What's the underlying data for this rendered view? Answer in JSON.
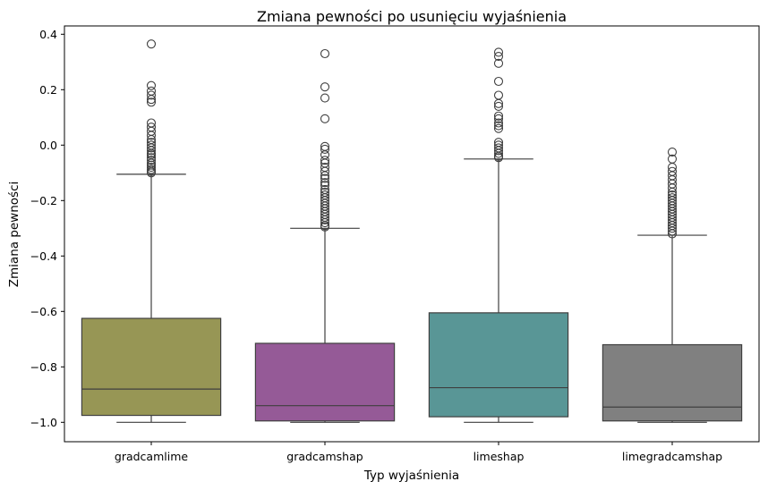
{
  "chart_data": {
    "type": "box",
    "title": "Zmiana pewności po usunięciu wyjaśnienia",
    "xlabel": "Typ wyjaśnienia",
    "ylabel": "Zmiana pewności",
    "ylim": [
      -1.07,
      0.43
    ],
    "yticks": [
      -1.0,
      -0.8,
      -0.6,
      -0.4,
      -0.2,
      0.0,
      0.2,
      0.4
    ],
    "ytick_labels": [
      "−1.0",
      "−0.8",
      "−0.6",
      "−0.4",
      "−0.2",
      "0.0",
      "0.2",
      "0.4"
    ],
    "grid": false,
    "legend": "none",
    "categories": [
      "gradcamlime",
      "gradcamshap",
      "limeshap",
      "limegradcamshap"
    ],
    "series": [
      {
        "category": "gradcamlime",
        "color": "#979655",
        "whisker_low": -1.0,
        "q1": -0.975,
        "median": -0.88,
        "q3": -0.625,
        "whisker_high": -0.105,
        "outliers": [
          0.365,
          0.215,
          0.195,
          0.18,
          0.165,
          0.155,
          0.08,
          0.065,
          0.05,
          0.035,
          0.02,
          0.01,
          0.0,
          -0.01,
          -0.02,
          -0.03,
          -0.035,
          -0.045,
          -0.055,
          -0.065,
          -0.072,
          -0.08,
          -0.088,
          -0.095,
          -0.1
        ]
      },
      {
        "category": "gradcamshap",
        "color": "#955a97",
        "whisker_low": -1.0,
        "q1": -0.995,
        "median": -0.94,
        "q3": -0.715,
        "whisker_high": -0.3,
        "outliers": [
          0.33,
          0.21,
          0.17,
          0.095,
          -0.005,
          -0.015,
          -0.035,
          -0.055,
          -0.065,
          -0.08,
          -0.095,
          -0.11,
          -0.12,
          -0.135,
          -0.145,
          -0.16,
          -0.17,
          -0.18,
          -0.19,
          -0.2,
          -0.21,
          -0.22,
          -0.23,
          -0.24,
          -0.25,
          -0.26,
          -0.27,
          -0.28,
          -0.29,
          -0.295
        ]
      },
      {
        "category": "limeshap",
        "color": "#599696",
        "whisker_low": -1.0,
        "q1": -0.98,
        "median": -0.875,
        "q3": -0.605,
        "whisker_high": -0.05,
        "outliers": [
          0.335,
          0.32,
          0.295,
          0.23,
          0.18,
          0.15,
          0.14,
          0.105,
          0.095,
          0.08,
          0.07,
          0.06,
          0.01,
          0.0,
          -0.01,
          -0.02,
          -0.03,
          -0.04,
          -0.045
        ]
      },
      {
        "category": "limegradcamshap",
        "color": "#808080",
        "whisker_low": -1.0,
        "q1": -0.995,
        "median": -0.945,
        "q3": -0.72,
        "whisker_high": -0.325,
        "outliers": [
          -0.025,
          -0.05,
          -0.08,
          -0.095,
          -0.11,
          -0.125,
          -0.14,
          -0.155,
          -0.17,
          -0.18,
          -0.19,
          -0.2,
          -0.21,
          -0.22,
          -0.23,
          -0.24,
          -0.25,
          -0.26,
          -0.27,
          -0.28,
          -0.29,
          -0.3,
          -0.31,
          -0.32
        ]
      }
    ]
  }
}
